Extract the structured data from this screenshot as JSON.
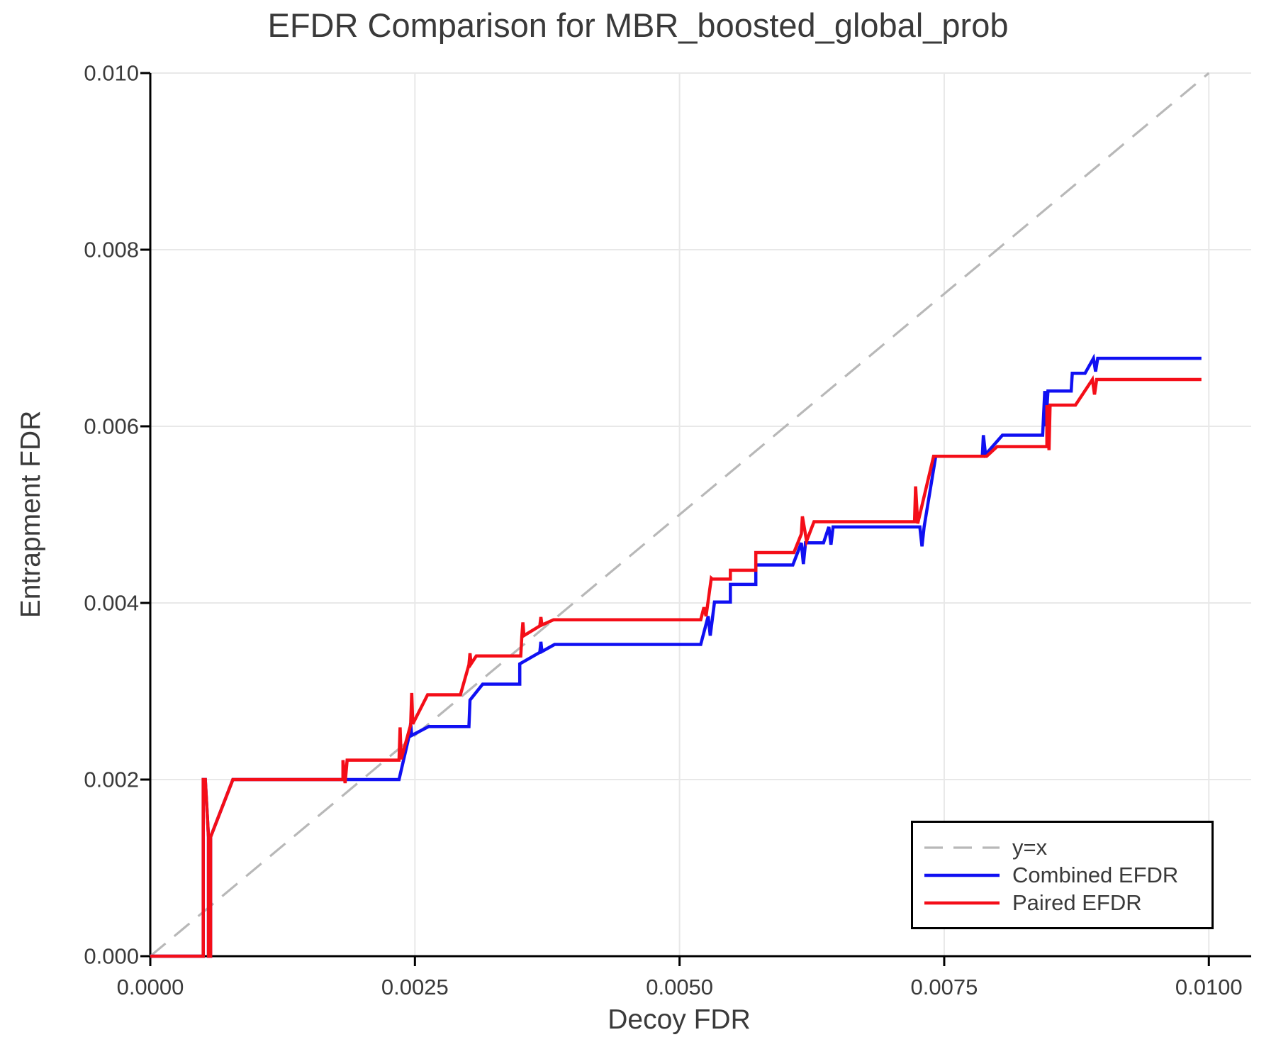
{
  "chart_data": {
    "type": "line",
    "title": "EFDR Comparison for MBR_boosted_global_prob",
    "xlabel": "Decoy FDR",
    "ylabel": "Entrapment FDR",
    "xlim": [
      0,
      0.0104
    ],
    "ylim": [
      0,
      0.01
    ],
    "grid": true,
    "legend_position": "lower right",
    "xticks": {
      "values": [
        0.0,
        0.0025,
        0.005,
        0.0075,
        0.01
      ],
      "labels": [
        "0.0000",
        "0.0025",
        "0.0050",
        "0.0075",
        "0.0100"
      ]
    },
    "yticks": {
      "values": [
        0.0,
        0.002,
        0.004,
        0.006,
        0.008,
        0.01
      ],
      "labels": [
        "0.000",
        "0.002",
        "0.004",
        "0.006",
        "0.008",
        "0.010"
      ]
    },
    "colors": {
      "identity": "#b8b8b8",
      "combined": "#1010f2",
      "paired": "#f40e18",
      "grid": "#e8e8e8",
      "axis": "#000000",
      "text": "#3a3a3a"
    },
    "legend": {
      "entries": [
        {
          "label": "y=x",
          "color": "#b8b8b8",
          "dashed": true
        },
        {
          "label": "Combined EFDR",
          "color": "#1010f2",
          "dashed": false
        },
        {
          "label": "Paired EFDR",
          "color": "#f40e18",
          "dashed": false
        }
      ]
    },
    "series": [
      {
        "name": "y=x",
        "color": "#b8b8b8",
        "dashed": true,
        "width": 3.2,
        "points": [
          [
            0.0,
            0.0
          ],
          [
            0.01,
            0.01
          ]
        ]
      },
      {
        "name": "Combined EFDR",
        "color": "#1010f2",
        "dashed": false,
        "width": 4.5,
        "points": [
          [
            0.0,
            0.0
          ],
          [
            0.0005,
            0.0
          ],
          [
            0.0005,
            0.002
          ],
          [
            0.00052,
            0.002
          ],
          [
            0.00055,
            0.00135
          ],
          [
            0.00055,
            0.0
          ],
          [
            0.00057,
            0.0
          ],
          [
            0.00057,
            0.00135
          ],
          [
            0.00078,
            0.002
          ],
          [
            0.00235,
            0.002
          ],
          [
            0.00245,
            0.00252
          ],
          [
            0.00246,
            0.00264
          ],
          [
            0.00247,
            0.0025
          ],
          [
            0.00263,
            0.0026
          ],
          [
            0.00301,
            0.0026
          ],
          [
            0.00302,
            0.0029
          ],
          [
            0.00314,
            0.00308
          ],
          [
            0.00349,
            0.00308
          ],
          [
            0.00349,
            0.00331
          ],
          [
            0.00368,
            0.00344
          ],
          [
            0.00369,
            0.00356
          ],
          [
            0.0037,
            0.00345
          ],
          [
            0.00382,
            0.00353
          ],
          [
            0.0052,
            0.00353
          ],
          [
            0.00527,
            0.00385
          ],
          [
            0.00529,
            0.00363
          ],
          [
            0.00533,
            0.00401
          ],
          [
            0.00548,
            0.00401
          ],
          [
            0.00548,
            0.00421
          ],
          [
            0.00572,
            0.00421
          ],
          [
            0.00572,
            0.00443
          ],
          [
            0.00607,
            0.00443
          ],
          [
            0.00615,
            0.00468
          ],
          [
            0.00617,
            0.00444
          ],
          [
            0.00619,
            0.00468
          ],
          [
            0.00636,
            0.00468
          ],
          [
            0.00641,
            0.00486
          ],
          [
            0.00643,
            0.00466
          ],
          [
            0.00645,
            0.00486
          ],
          [
            0.00727,
            0.00486
          ],
          [
            0.00729,
            0.00464
          ],
          [
            0.00731,
            0.00486
          ],
          [
            0.00742,
            0.00566
          ],
          [
            0.00786,
            0.00566
          ],
          [
            0.00787,
            0.0059
          ],
          [
            0.00789,
            0.00568
          ],
          [
            0.00805,
            0.0059
          ],
          [
            0.00843,
            0.0059
          ],
          [
            0.00845,
            0.0064
          ],
          [
            0.00846,
            0.006
          ],
          [
            0.00848,
            0.0064
          ],
          [
            0.0087,
            0.0064
          ],
          [
            0.00871,
            0.0066
          ],
          [
            0.00883,
            0.0066
          ],
          [
            0.00891,
            0.00677
          ],
          [
            0.00893,
            0.00662
          ],
          [
            0.00895,
            0.00677
          ],
          [
            0.00993,
            0.00677
          ]
        ]
      },
      {
        "name": "Paired EFDR",
        "color": "#f40e18",
        "dashed": false,
        "width": 4.5,
        "points": [
          [
            0.0,
            0.0
          ],
          [
            0.0005,
            0.0
          ],
          [
            0.0005,
            0.002
          ],
          [
            0.00052,
            0.002
          ],
          [
            0.00055,
            0.00135
          ],
          [
            0.00055,
            0.0
          ],
          [
            0.00057,
            0.0
          ],
          [
            0.00057,
            0.00135
          ],
          [
            0.00078,
            0.002
          ],
          [
            0.00182,
            0.002
          ],
          [
            0.00182,
            0.00222
          ],
          [
            0.00184,
            0.00196
          ],
          [
            0.00186,
            0.00222
          ],
          [
            0.00235,
            0.00222
          ],
          [
            0.00236,
            0.00259
          ],
          [
            0.00237,
            0.00223
          ],
          [
            0.00246,
            0.00262
          ],
          [
            0.00247,
            0.00298
          ],
          [
            0.00248,
            0.00263
          ],
          [
            0.00262,
            0.00296
          ],
          [
            0.00293,
            0.00296
          ],
          [
            0.00301,
            0.0033
          ],
          [
            0.00302,
            0.00343
          ],
          [
            0.00303,
            0.00331
          ],
          [
            0.00308,
            0.0034
          ],
          [
            0.0035,
            0.0034
          ],
          [
            0.00351,
            0.00362
          ],
          [
            0.00352,
            0.00378
          ],
          [
            0.00353,
            0.00363
          ],
          [
            0.00368,
            0.00374
          ],
          [
            0.00369,
            0.00384
          ],
          [
            0.0037,
            0.00375
          ],
          [
            0.00381,
            0.00381
          ],
          [
            0.0052,
            0.00381
          ],
          [
            0.00523,
            0.00395
          ],
          [
            0.00525,
            0.00385
          ],
          [
            0.0053,
            0.00428
          ],
          [
            0.00531,
            0.00427
          ],
          [
            0.00548,
            0.00427
          ],
          [
            0.00548,
            0.00437
          ],
          [
            0.00572,
            0.00437
          ],
          [
            0.00572,
            0.00457
          ],
          [
            0.00608,
            0.00457
          ],
          [
            0.00615,
            0.00478
          ],
          [
            0.00616,
            0.00498
          ],
          [
            0.0062,
            0.0047
          ],
          [
            0.00627,
            0.00492
          ],
          [
            0.00722,
            0.00492
          ],
          [
            0.00723,
            0.00532
          ],
          [
            0.00725,
            0.0049
          ],
          [
            0.0074,
            0.00566
          ],
          [
            0.0079,
            0.00566
          ],
          [
            0.008,
            0.00577
          ],
          [
            0.00847,
            0.00577
          ],
          [
            0.00847,
            0.00624
          ],
          [
            0.00849,
            0.00573
          ],
          [
            0.0085,
            0.00624
          ],
          [
            0.00874,
            0.00624
          ],
          [
            0.0089,
            0.00653
          ],
          [
            0.00892,
            0.00636
          ],
          [
            0.00894,
            0.00653
          ],
          [
            0.00993,
            0.00653
          ]
        ]
      }
    ]
  }
}
